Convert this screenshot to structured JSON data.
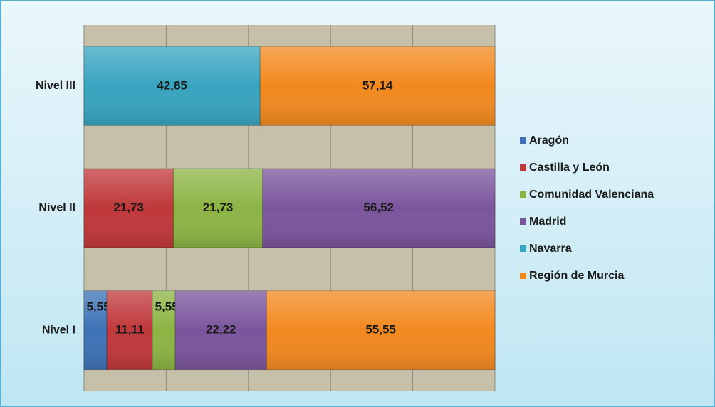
{
  "chart_data": {
    "type": "stacked_barh",
    "categories": [
      "Nivel I",
      "Nivel II",
      "Nivel III"
    ],
    "series": [
      {
        "name": "Aragón",
        "color": "#3d72b6",
        "values": [
          5.55,
          null,
          null
        ],
        "value_labels": [
          "5,55",
          null,
          null
        ]
      },
      {
        "name": "Castilla y León",
        "color": "#c0383a",
        "values": [
          11.11,
          21.73,
          null
        ],
        "value_labels": [
          "11,11",
          "21,73",
          null
        ]
      },
      {
        "name": "Comunidad Valenciana",
        "color": "#8cb444",
        "values": [
          5.55,
          21.73,
          null
        ],
        "value_labels": [
          "5,55",
          "21,73",
          null
        ]
      },
      {
        "name": "Madrid",
        "color": "#7a559c",
        "values": [
          22.22,
          56.52,
          null
        ],
        "value_labels": [
          "22,22",
          "56,52",
          null
        ]
      },
      {
        "name": "Navarra",
        "color": "#38a4c0",
        "values": [
          null,
          null,
          42.85
        ],
        "value_labels": [
          null,
          null,
          "42,85"
        ]
      },
      {
        "name": "Región de Murcia",
        "color": "#f2891f",
        "values": [
          55.55,
          null,
          57.14
        ],
        "value_labels": [
          "55,55",
          null,
          "57,14"
        ]
      }
    ],
    "xlim": [
      0,
      100
    ],
    "xticks": [
      0,
      20,
      40,
      60,
      80,
      100
    ],
    "grid": true,
    "legend": "right"
  }
}
